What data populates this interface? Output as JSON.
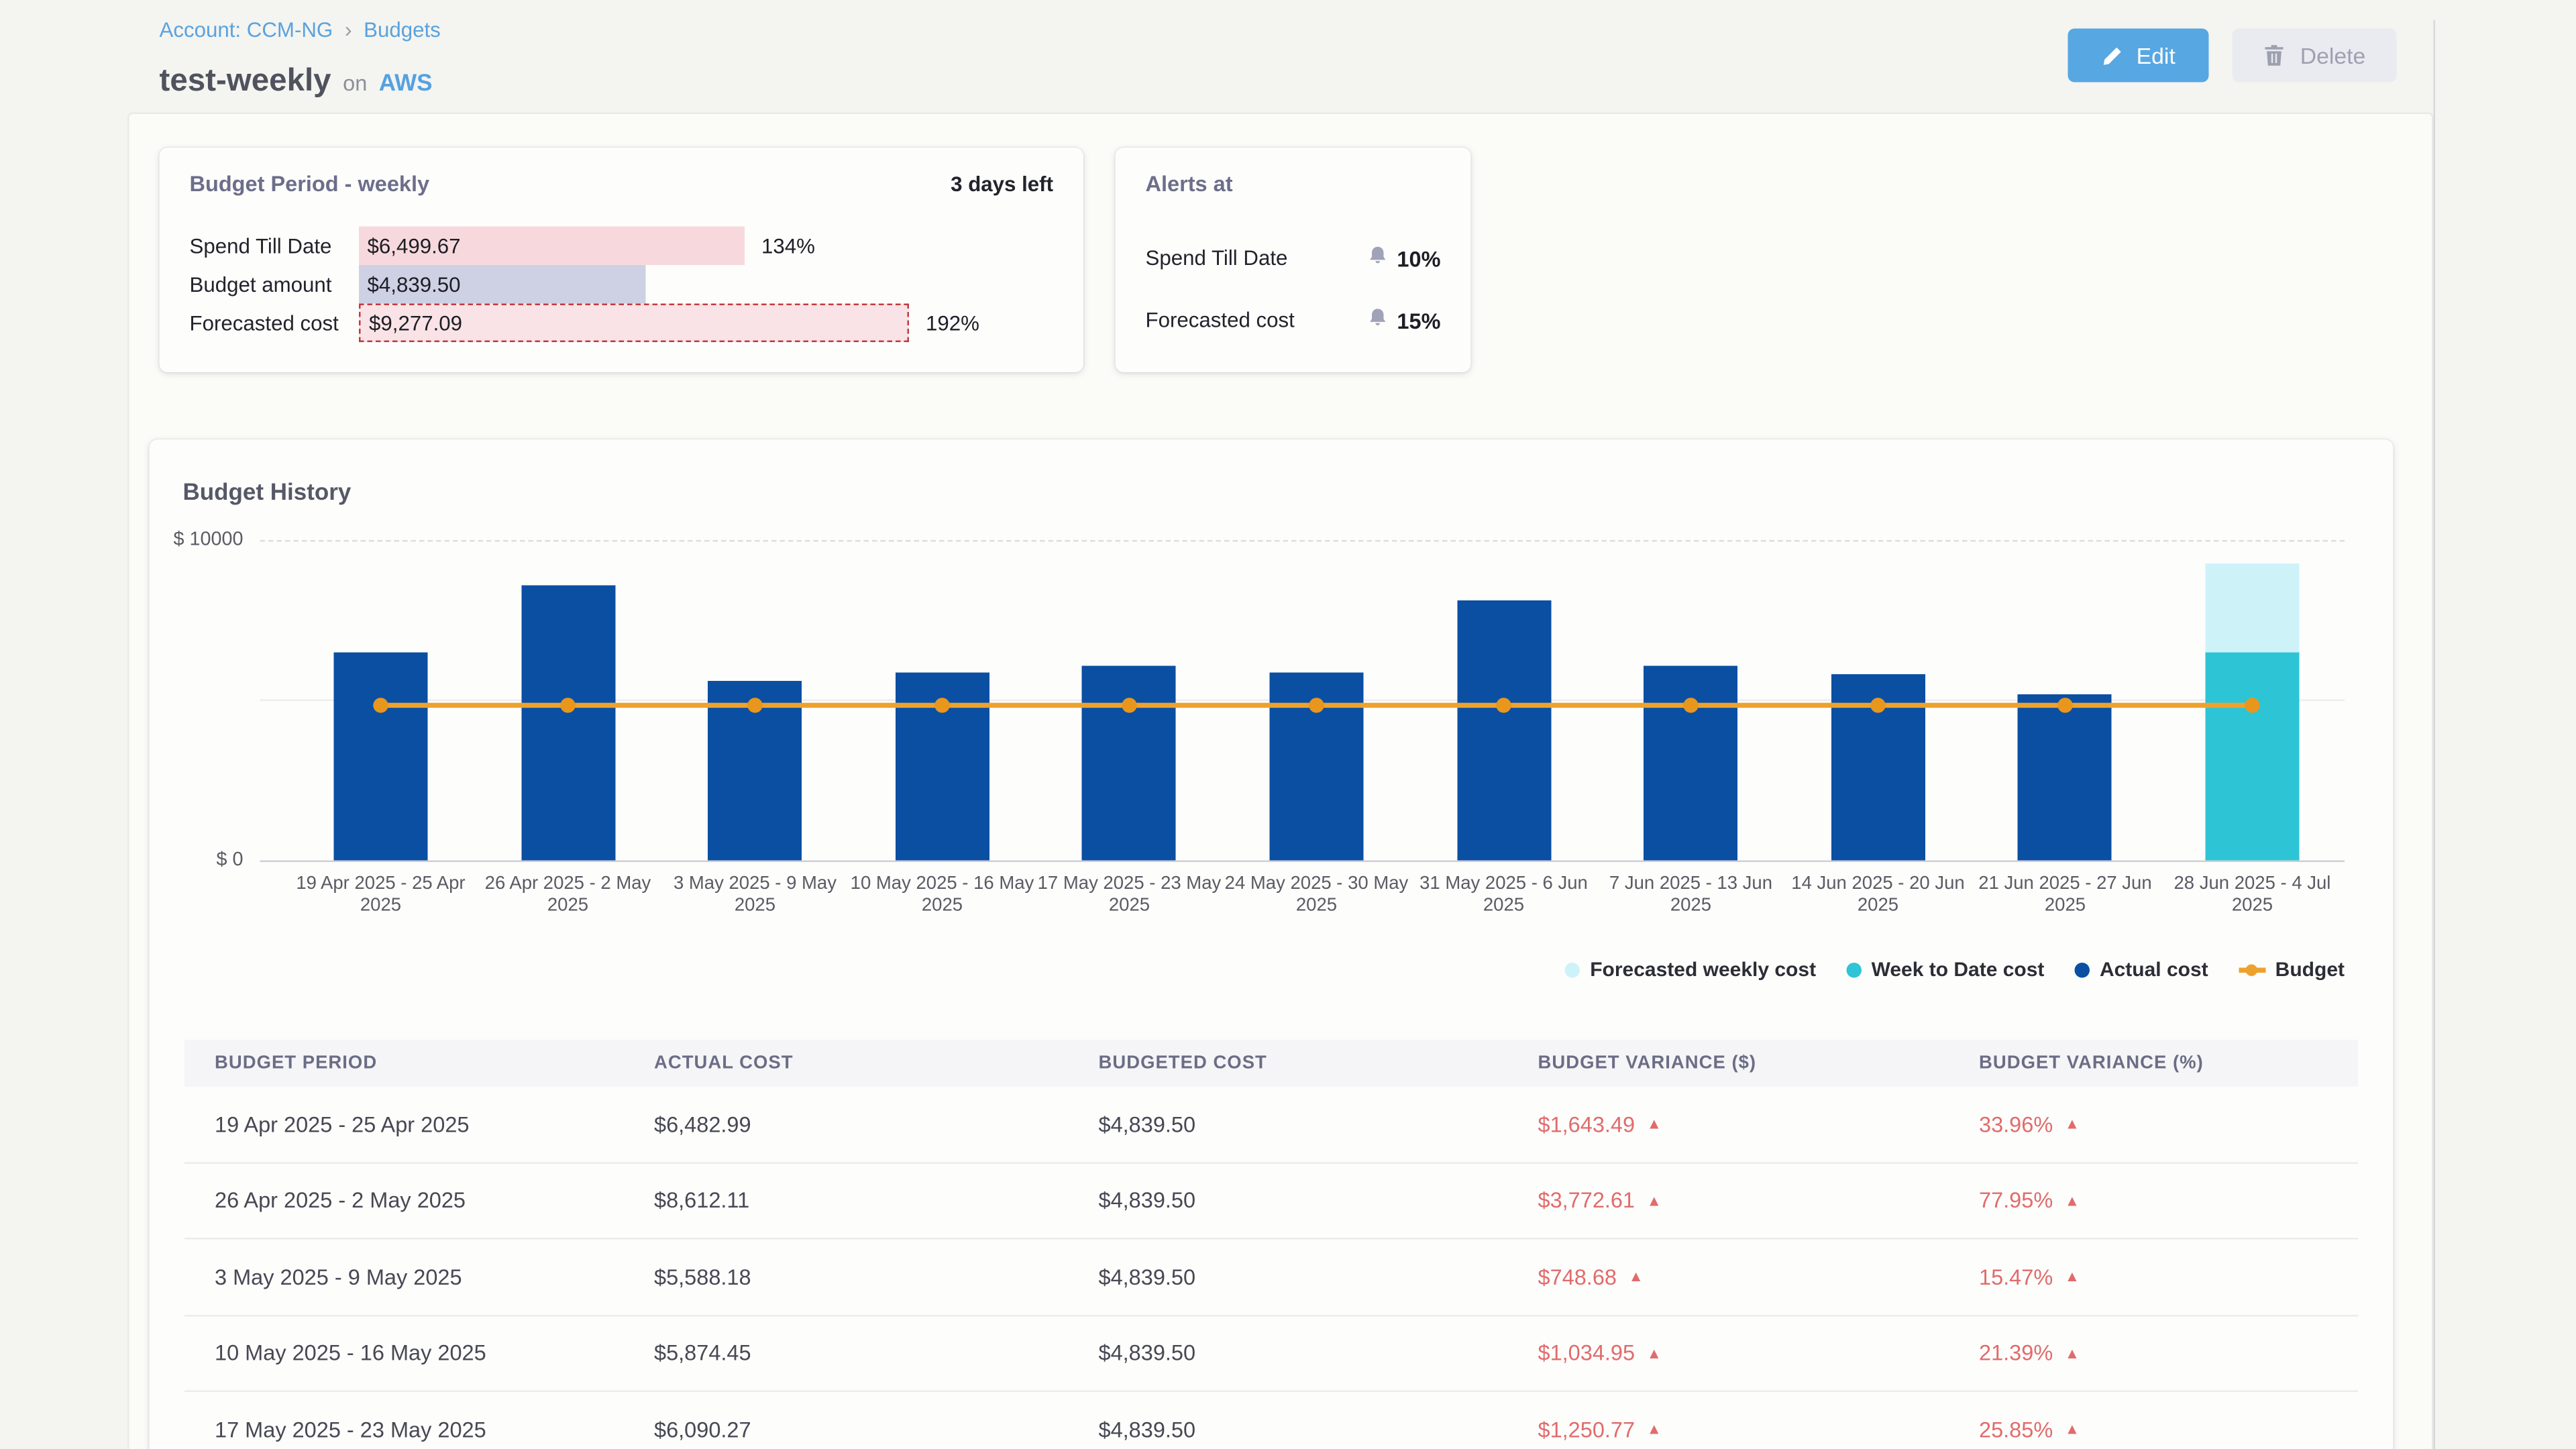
{
  "breadcrumb": {
    "account": "Account: CCM-NG",
    "separator": "›",
    "section": "Budgets"
  },
  "header": {
    "title": "test-weekly",
    "connector": "on",
    "platform": "AWS"
  },
  "toolbar": {
    "edit_label": "Edit",
    "delete_label": "Delete"
  },
  "budget_period": {
    "title": "Budget Period - weekly",
    "days_left": "3 days left",
    "rows": [
      {
        "label": "Spend Till Date",
        "amount": "$6,499.67",
        "value": 6499.67,
        "percent": "134%",
        "style": "spend"
      },
      {
        "label": "Budget amount",
        "amount": "$4,839.50",
        "value": 4839.5,
        "percent": "",
        "style": "budget"
      },
      {
        "label": "Forecasted cost",
        "amount": "$9,277.09",
        "value": 9277.09,
        "percent": "192%",
        "style": "forecast"
      }
    ]
  },
  "alerts": {
    "title": "Alerts at",
    "rows": [
      {
        "label": "Spend Till Date",
        "threshold": "10%"
      },
      {
        "label": "Forecasted cost",
        "threshold": "15%"
      }
    ]
  },
  "chart_data": {
    "type": "bar",
    "title": "Budget History",
    "ylabel": "",
    "ylim": [
      0,
      10000
    ],
    "y_ticks": [
      "$ 10000",
      "$ 0"
    ],
    "grid": true,
    "legend_position": "bottom-right",
    "categories": [
      "19 Apr 2025 - 25 Apr 2025",
      "26 Apr 2025 - 2 May 2025",
      "3 May 2025 - 9 May 2025",
      "10 May 2025 - 16 May 2025",
      "17 May 2025 - 23 May 2025",
      "24 May 2025 - 30 May 2025",
      "31 May 2025 - 6 Jun 2025",
      "7 Jun 2025 - 13 Jun 2025",
      "14 Jun 2025 - 20 Jun 2025",
      "21 Jun 2025 - 27 Jun 2025",
      "28 Jun 2025 - 4 Jul 2025"
    ],
    "series": [
      {
        "name": "Actual cost",
        "type": "bar",
        "color": "#0b4fa3",
        "values": [
          6482.99,
          8612.11,
          5588.18,
          5874.45,
          6090.27,
          5850,
          8140,
          6070,
          5820,
          5170,
          null
        ]
      },
      {
        "name": "Week to Date cost",
        "type": "bar",
        "color": "#2dc5d6",
        "values": [
          null,
          null,
          null,
          null,
          null,
          null,
          null,
          null,
          null,
          null,
          6499.67
        ]
      },
      {
        "name": "Forecasted weekly cost",
        "type": "bar-stacked-top",
        "color": "#cdf3f9",
        "values": [
          null,
          null,
          null,
          null,
          null,
          null,
          null,
          null,
          null,
          null,
          9277.09
        ]
      },
      {
        "name": "Budget",
        "type": "line",
        "color": "#eda22e",
        "marker_color": "#e8961c",
        "values": [
          4839.5,
          4839.5,
          4839.5,
          4839.5,
          4839.5,
          4839.5,
          4839.5,
          4839.5,
          4839.5,
          4839.5,
          4839.5
        ]
      }
    ],
    "legend": [
      {
        "label": "Forecasted weekly cost",
        "color": "#cdf3f9",
        "shape": "dot"
      },
      {
        "label": "Week to Date cost",
        "color": "#2dc5d6",
        "shape": "dot"
      },
      {
        "label": "Actual cost",
        "color": "#0b4fa3",
        "shape": "dot"
      },
      {
        "label": "Budget",
        "color": "#eda22e",
        "shape": "line-dot"
      }
    ]
  },
  "table": {
    "headers": [
      "Budget Period",
      "Actual Cost",
      "Budgeted Cost",
      "Budget Variance ($)",
      "Budget Variance (%)"
    ],
    "rows": [
      {
        "period": "19 Apr 2025 - 25 Apr 2025",
        "actual": "$6,482.99",
        "budgeted": "$4,839.50",
        "variance_usd": "$1,643.49",
        "variance_pct": "33.96%",
        "trend": "up"
      },
      {
        "period": "26 Apr 2025 - 2 May 2025",
        "actual": "$8,612.11",
        "budgeted": "$4,839.50",
        "variance_usd": "$3,772.61",
        "variance_pct": "77.95%",
        "trend": "up"
      },
      {
        "period": "3 May 2025 - 9 May 2025",
        "actual": "$5,588.18",
        "budgeted": "$4,839.50",
        "variance_usd": "$748.68",
        "variance_pct": "15.47%",
        "trend": "up"
      },
      {
        "period": "10 May 2025 - 16 May 2025",
        "actual": "$5,874.45",
        "budgeted": "$4,839.50",
        "variance_usd": "$1,034.95",
        "variance_pct": "21.39%",
        "trend": "up"
      },
      {
        "period": "17 May 2025 - 23 May 2025",
        "actual": "$6,090.27",
        "budgeted": "$4,839.50",
        "variance_usd": "$1,250.77",
        "variance_pct": "25.85%",
        "trend": "up"
      }
    ]
  },
  "colors": {
    "accent_blue": "#57a7e3",
    "bar_actual": "#0b4fa3",
    "bar_week_to_date": "#2dc5d6",
    "bar_forecast": "#cdf3f9",
    "budget_line": "#eda22e",
    "variance_red": "#e16b6b",
    "spend_bar_pink": "#f7d9dd",
    "budget_bar_lavender": "#ced1e4",
    "forecast_bar_pink": "#fae3e6"
  }
}
